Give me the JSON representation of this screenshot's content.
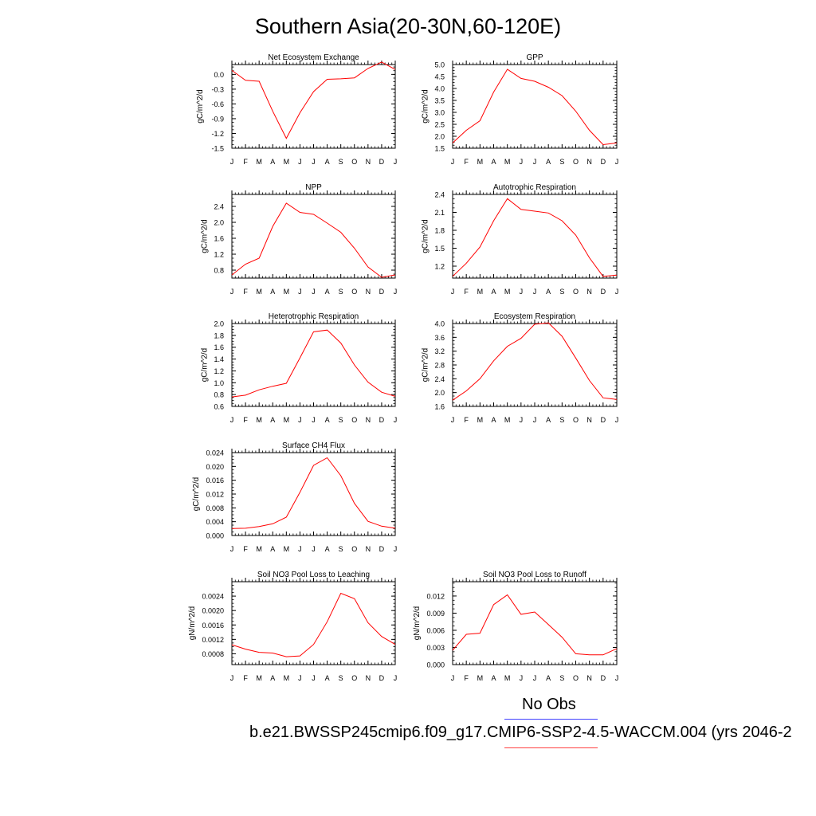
{
  "title": "Southern Asia(20-30N,60-120E)",
  "legend": {
    "obs_label": "No Obs",
    "obs_color": "#4040ff",
    "model_label": "b.e21.BWSSP245cmip6.f09_g17.CMIP6-SSP2-4.5-WACCM.004 (yrs 2046-2",
    "model_color": "#ff4040"
  },
  "line_color": "#ff0000",
  "month_labels": [
    "J",
    "F",
    "M",
    "A",
    "M",
    "J",
    "J",
    "A",
    "S",
    "O",
    "N",
    "D",
    "J"
  ],
  "chart_data": [
    {
      "type": "line",
      "title": "Net Ecosystem Exchange",
      "ylabel": "gC/m^2/d",
      "ylim": [
        -1.5,
        0.2
      ],
      "yticks": [
        0.0,
        -0.3,
        -0.6,
        -0.9,
        -1.2,
        -1.5
      ],
      "ytick_labels": [
        "0.0",
        "-0.3",
        "-0.6",
        "-0.9",
        "-1.2",
        "-1.5"
      ],
      "values": [
        0.08,
        -0.12,
        -0.14,
        -0.75,
        -1.3,
        -0.78,
        -0.35,
        -0.1,
        -0.09,
        -0.07,
        0.12,
        0.25,
        0.1
      ]
    },
    {
      "type": "line",
      "title": "GPP",
      "ylabel": "gC/m^2/d",
      "ylim": [
        1.5,
        5.0
      ],
      "yticks": [
        1.5,
        2.0,
        2.5,
        3.0,
        3.5,
        4.0,
        4.5,
        5.0
      ],
      "ytick_labels": [
        "1.5",
        "2.0",
        "2.5",
        "3.0",
        "3.5",
        "4.0",
        "4.5",
        "5.0"
      ],
      "values": [
        1.72,
        2.25,
        2.65,
        3.85,
        4.8,
        4.42,
        4.3,
        4.05,
        3.7,
        3.05,
        2.25,
        1.65,
        1.72
      ]
    },
    {
      "type": "line",
      "title": "NPP",
      "ylabel": "gC/m^2/d",
      "ylim": [
        0.6,
        2.7
      ],
      "yticks": [
        0.8,
        1.2,
        1.6,
        2.0,
        2.4
      ],
      "ytick_labels": [
        "0.8",
        "1.2",
        "1.6",
        "2.0",
        "2.4"
      ],
      "values": [
        0.68,
        0.95,
        1.1,
        1.9,
        2.48,
        2.25,
        2.2,
        1.98,
        1.75,
        1.35,
        0.88,
        0.62,
        0.68
      ]
    },
    {
      "type": "line",
      "title": "Autotrophic Respiration",
      "ylabel": "gC/m^2/d",
      "ylim": [
        1.0,
        2.4
      ],
      "yticks": [
        1.2,
        1.5,
        1.8,
        2.1,
        2.4
      ],
      "ytick_labels": [
        "1.2",
        "1.5",
        "1.8",
        "2.1",
        "2.4"
      ],
      "values": [
        1.03,
        1.25,
        1.52,
        1.96,
        2.33,
        2.15,
        2.12,
        2.09,
        1.96,
        1.72,
        1.34,
        1.03,
        1.05
      ]
    },
    {
      "type": "line",
      "title": "Heterotrophic Respiration",
      "ylabel": "gC/m^2/d",
      "ylim": [
        0.6,
        2.0
      ],
      "yticks": [
        0.6,
        0.8,
        1.0,
        1.2,
        1.4,
        1.6,
        1.8,
        2.0
      ],
      "ytick_labels": [
        "0.6",
        "0.8",
        "1.0",
        "1.2",
        "1.4",
        "1.6",
        "1.8",
        "2.0"
      ],
      "values": [
        0.76,
        0.79,
        0.88,
        0.94,
        0.99,
        1.42,
        1.86,
        1.89,
        1.67,
        1.3,
        1.01,
        0.84,
        0.77
      ]
    },
    {
      "type": "line",
      "title": "Ecosystem Respiration",
      "ylabel": "gC/m^2/d",
      "ylim": [
        1.6,
        4.0
      ],
      "yticks": [
        1.6,
        2.0,
        2.4,
        2.8,
        3.2,
        3.6,
        4.0
      ],
      "ytick_labels": [
        "1.6",
        "2.0",
        "2.4",
        "2.8",
        "3.2",
        "3.6",
        "4.0"
      ],
      "values": [
        1.78,
        2.05,
        2.4,
        2.92,
        3.34,
        3.57,
        3.98,
        4.02,
        3.63,
        3.0,
        2.35,
        1.85,
        1.8
      ]
    },
    {
      "type": "line",
      "title": "Surface CH4 Flux",
      "ylabel": "gC/m^2/d",
      "ylim": [
        0.0,
        0.024
      ],
      "yticks": [
        0.0,
        0.004,
        0.008,
        0.012,
        0.016,
        0.02,
        0.024
      ],
      "ytick_labels": [
        "0.000",
        "0.004",
        "0.008",
        "0.012",
        "0.016",
        "0.020",
        "0.024"
      ],
      "values": [
        0.002,
        0.0021,
        0.0026,
        0.0034,
        0.0053,
        0.0125,
        0.0203,
        0.0225,
        0.0173,
        0.0093,
        0.0041,
        0.0027,
        0.0021
      ]
    },
    {
      "type": "line",
      "title": "Soil NO3 Pool Loss to Leaching",
      "ylabel": "gN/m^2/d",
      "ylim": [
        0.0005,
        0.0028
      ],
      "yticks": [
        0.0008,
        0.0012,
        0.0016,
        0.002,
        0.0024
      ],
      "ytick_labels": [
        "0.0008",
        "0.0012",
        "0.0016",
        "0.0020",
        "0.0024"
      ],
      "values": [
        0.00105,
        0.00093,
        0.00084,
        0.00082,
        0.00072,
        0.00074,
        0.00106,
        0.00169,
        0.00248,
        0.00233,
        0.00166,
        0.00128,
        0.00106
      ]
    },
    {
      "type": "line",
      "title": "Soil NO3 Pool Loss to Runoff",
      "ylabel": "gN/m^2/d",
      "ylim": [
        0.0,
        0.0145
      ],
      "yticks": [
        0.0,
        0.003,
        0.006,
        0.009,
        0.012
      ],
      "ytick_labels": [
        "0.000",
        "0.003",
        "0.006",
        "0.009",
        "0.012"
      ],
      "values": [
        0.0025,
        0.0053,
        0.0055,
        0.0105,
        0.0122,
        0.0088,
        0.0092,
        0.007,
        0.0048,
        0.0019,
        0.0017,
        0.0017,
        0.0028
      ]
    }
  ]
}
